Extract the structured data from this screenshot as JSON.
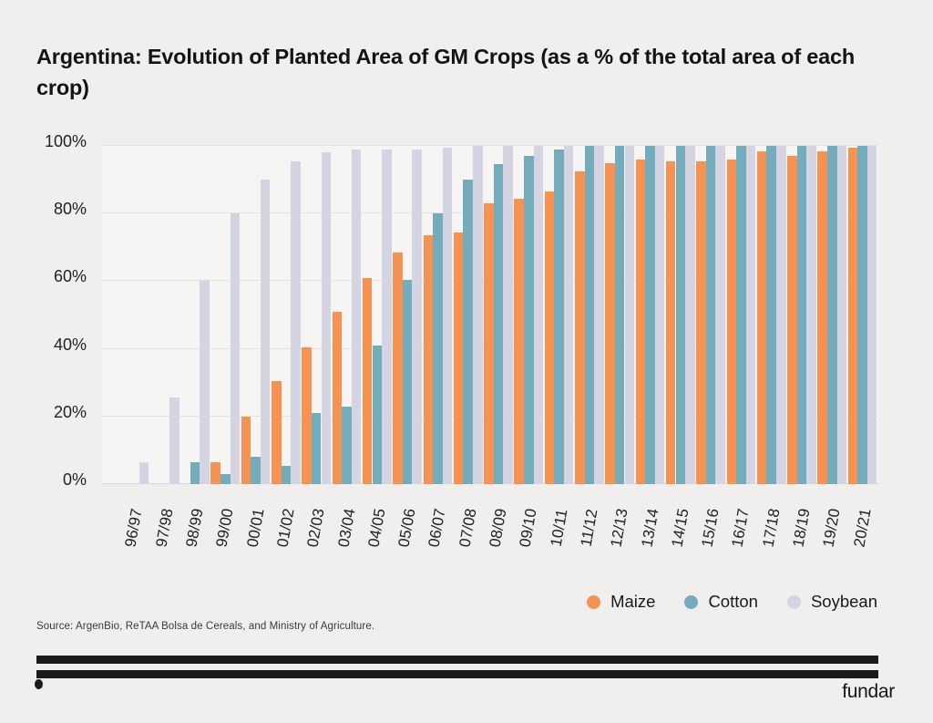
{
  "title": "Argentina: Evolution of Planted Area of GM Crops (as a % of the total area of each crop)",
  "source": "Source: ArgenBio, ReTAA Bolsa de Cereals, and Ministry of Agriculture.",
  "footer": {
    "brand": "fundar"
  },
  "chart_data": {
    "type": "bar",
    "title": "Argentina: Evolution of Planted Area of GM Crops (as a % of the total area of each crop)",
    "xlabel": "",
    "ylabel": "",
    "ylim": [
      0,
      100
    ],
    "yticks": [
      0,
      20,
      40,
      60,
      80,
      100
    ],
    "ytick_suffix": "%",
    "grid": true,
    "legend_position": "bottom-right",
    "categories": [
      "96/97",
      "97/98",
      "98/99",
      "99/00",
      "00/01",
      "01/02",
      "02/03",
      "03/04",
      "04/05",
      "05/06",
      "06/07",
      "07/08",
      "08/09",
      "09/10",
      "10/11",
      "11/12",
      "12/13",
      "13/14",
      "14/15",
      "15/16",
      "16/17",
      "17/18",
      "18/19",
      "19/20",
      "20/21"
    ],
    "series": [
      {
        "name": "Maize",
        "color": "#F79352",
        "values": [
          0,
          0,
          0,
          6.5,
          20,
          30.5,
          40.5,
          51,
          61,
          68.5,
          73.5,
          74.5,
          83,
          84.5,
          86.5,
          92.5,
          95,
          96,
          95.5,
          95.5,
          96,
          98.5,
          97,
          98.5,
          99.5
        ]
      },
      {
        "name": "Cotton",
        "color": "#73ADBC",
        "values": [
          0,
          0,
          6.5,
          3,
          8,
          5.5,
          21,
          23,
          41,
          60.5,
          80,
          90,
          94.5,
          97,
          99,
          100,
          100,
          100,
          100,
          100,
          100,
          100,
          100,
          100,
          100
        ]
      },
      {
        "name": "Soybean",
        "color": "#D5D4E3",
        "values": [
          6.5,
          25.5,
          60.5,
          80,
          90,
          95.5,
          98,
          99,
          99,
          99,
          99.5,
          100,
          100,
          100,
          100,
          100,
          100,
          100,
          100,
          100,
          100,
          100,
          100,
          100,
          100
        ]
      }
    ]
  }
}
